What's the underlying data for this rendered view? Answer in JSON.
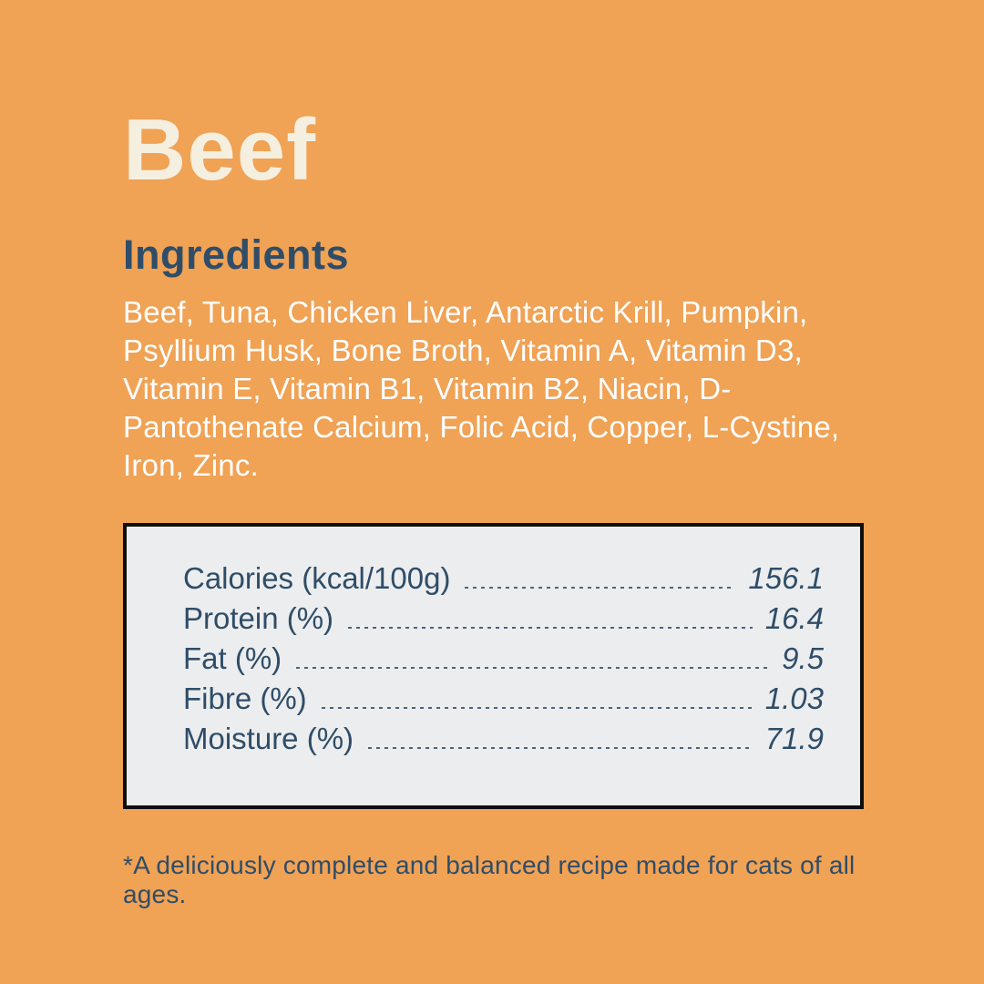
{
  "label": {
    "title": "Beef",
    "section_heading": "Ingredients",
    "ingredients_text": "Beef, Tuna, Chicken Liver, Antarctic Krill, Pumpkin, Psyllium Husk, Bone Broth, Vitamin A, Vitamin D3, Vitamin E, Vitamin B1, Vitamin B2, Niacin, D-Pantothenate Calcium, Folic Acid, Copper, L-Cystine, Iron, Zinc.",
    "footnote": "*A deliciously complete and balanced recipe made for cats of all ages."
  },
  "nutrition": {
    "rows": [
      {
        "label": "Calories (kcal/100g)",
        "value": "156.1"
      },
      {
        "label": "Protein (%)",
        "value": "16.4"
      },
      {
        "label": "Fat (%)",
        "value": "9.5"
      },
      {
        "label": "Fibre (%)",
        "value": "1.03"
      },
      {
        "label": "Moisture (%)",
        "value": "71.9"
      }
    ]
  },
  "colors": {
    "background": "#F0A255",
    "title_text": "#F5EFDF",
    "navy_text": "#2F4D68",
    "body_text": "#FFFFFF",
    "panel_background": "#ECEDEE",
    "panel_border": "#0F0F0F"
  }
}
